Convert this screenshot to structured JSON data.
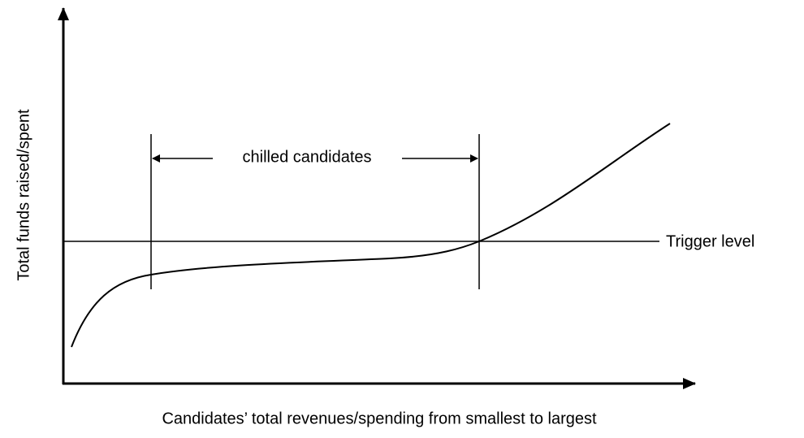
{
  "y_axis_label": "Total funds raised/spent",
  "x_axis_label": "Candidates’ total revenues/spending from smallest to largest",
  "bracket_label": "chilled candidates",
  "line_label": "Trigger level"
}
